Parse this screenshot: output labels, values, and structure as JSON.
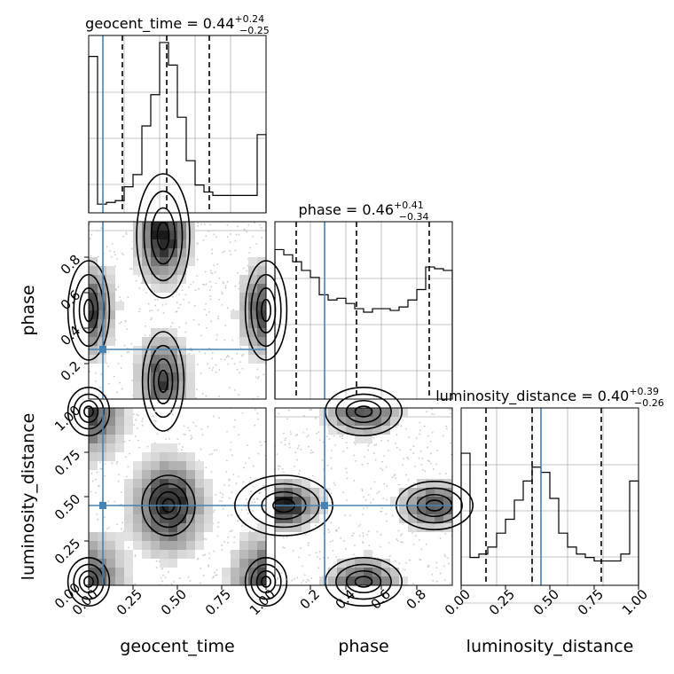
{
  "truth_color": "#4682b4",
  "chart_data": [
    {
      "type": "corner",
      "parameters": [
        "geocent_time",
        "phase",
        "luminosity_distance"
      ],
      "truths": {
        "geocent_time": 0.08,
        "phase": 0.28,
        "luminosity_distance": 0.45
      },
      "axis_labels": {
        "x": [
          "geocent_time",
          "phase",
          "luminosity_distance"
        ],
        "y": [
          "phase",
          "luminosity_distance"
        ]
      },
      "axis_ranges": {
        "geocent_time": [
          0,
          1
        ],
        "phase": [
          0,
          1
        ],
        "luminosity_distance": [
          0,
          1
        ]
      },
      "ticks": {
        "geocent_time": [
          "0.00",
          "0.25",
          "0.50",
          "0.75",
          "1.00"
        ],
        "phase": [
          "0.2",
          "0.4",
          "0.6",
          "0.8"
        ],
        "luminosity_distance": [
          "0.00",
          "0.25",
          "0.50",
          "0.75",
          "1.00"
        ]
      },
      "grid": true
    },
    {
      "type": "bar",
      "panel": "hist-geocent_time",
      "title_param": "geocent_time",
      "title_value": "0.44",
      "title_plus": "+0.24",
      "title_minus": "−0.25",
      "bin_edges_start": 0,
      "bin_edges_end": 1,
      "values": [
        0.9,
        0.05,
        0.06,
        0.07,
        0.15,
        0.22,
        0.5,
        0.68,
        0.98,
        0.85,
        0.55,
        0.3,
        0.16,
        0.12,
        0.1,
        0.1,
        0.1,
        0.1,
        0.1,
        0.45
      ],
      "quantiles": [
        0.19,
        0.44,
        0.68
      ],
      "truth": 0.08
    },
    {
      "type": "bar",
      "panel": "hist-phase",
      "title_param": "phase",
      "title_value": "0.46",
      "title_plus": "+0.41",
      "title_minus": "−0.34",
      "bin_edges_start": 0,
      "bin_edges_end": 1,
      "values": [
        0.86,
        0.83,
        0.79,
        0.74,
        0.7,
        0.6,
        0.57,
        0.58,
        0.55,
        0.52,
        0.5,
        0.52,
        0.52,
        0.51,
        0.53,
        0.57,
        0.63,
        0.76,
        0.75,
        0.74
      ],
      "quantiles": [
        0.12,
        0.46,
        0.87
      ],
      "truth": 0.28
    },
    {
      "type": "bar",
      "panel": "hist-luminosity_distance",
      "title_param": "luminosity_distance",
      "title_value": "0.40",
      "title_plus": "+0.39",
      "title_minus": "−0.26",
      "bin_edges_start": 0,
      "bin_edges_end": 1,
      "values": [
        0.76,
        0.16,
        0.18,
        0.22,
        0.3,
        0.38,
        0.49,
        0.6,
        0.68,
        0.65,
        0.5,
        0.3,
        0.22,
        0.18,
        0.16,
        0.14,
        0.14,
        0.14,
        0.18,
        0.6
      ],
      "quantiles": [
        0.14,
        0.4,
        0.79
      ],
      "truth": 0.45
    },
    {
      "type": "heatmap",
      "panel": "joint-geocent_time-phase",
      "x_param": "geocent_time",
      "y_param": "phase",
      "description_cells": "density concentrated along geocent_time ≈ 0.4 and near edges 0 and 1",
      "truth": [
        0.08,
        0.28
      ]
    },
    {
      "type": "heatmap",
      "panel": "joint-geocent_time-luminosity_distance",
      "x_param": "geocent_time",
      "y_param": "luminosity_distance",
      "truth": [
        0.08,
        0.45
      ]
    },
    {
      "type": "heatmap",
      "panel": "joint-phase-luminosity_distance",
      "x_param": "phase",
      "y_param": "luminosity_distance",
      "truth": [
        0.28,
        0.45
      ]
    }
  ]
}
